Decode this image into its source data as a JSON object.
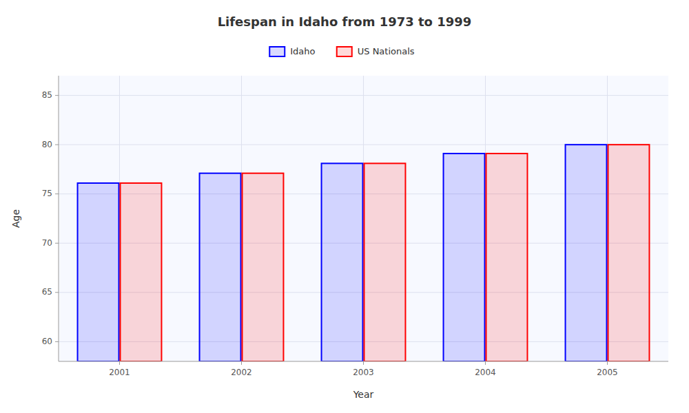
{
  "chart_data": {
    "type": "bar",
    "title": "Lifespan in Idaho from 1973 to 1999",
    "xlabel": "Year",
    "ylabel": "Age",
    "categories": [
      "2001",
      "2002",
      "2003",
      "2004",
      "2005"
    ],
    "series": [
      {
        "name": "Idaho",
        "color": "#0000ff",
        "values": [
          76.1,
          77.1,
          78.1,
          79.1,
          80.0
        ]
      },
      {
        "name": "US Nationals",
        "color": "#ff0000",
        "values": [
          76.1,
          77.1,
          78.1,
          79.1,
          80.0
        ]
      }
    ],
    "ylim": [
      58,
      87
    ],
    "yticks": [
      60,
      65,
      70,
      75,
      80,
      85
    ],
    "grid": true,
    "legend": "top"
  }
}
